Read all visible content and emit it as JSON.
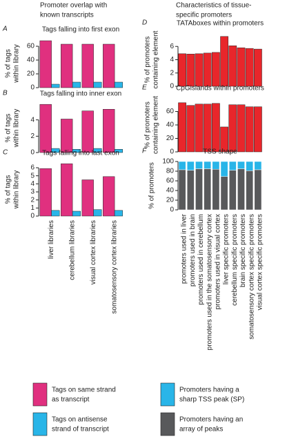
{
  "column_titles": [
    [
      "Promoter overlap with",
      "known transcripts"
    ],
    [
      "Characteristics of tissue-",
      "specific promoters"
    ]
  ],
  "chart_data": [
    {
      "type": "bar",
      "letter": "A",
      "title": "Tags falling into first exon",
      "ylabel": [
        "% of tags",
        "within library"
      ],
      "series": [
        {
          "color": "#e0307f",
          "values": [
            68,
            63,
            63,
            63
          ]
        },
        {
          "color": "#29b5e8",
          "values": [
            5,
            8,
            8,
            8
          ]
        }
      ],
      "ylim": [
        0,
        70
      ],
      "yticks": [
        0,
        20,
        40,
        60
      ]
    },
    {
      "type": "bar",
      "letter": "B",
      "title": "Tags falling into inner exon",
      "ylabel": [
        "% of tags",
        "within library"
      ],
      "series": [
        {
          "color": "#e0307f",
          "values": [
            5.9,
            4.1,
            5.1,
            5.3
          ]
        },
        {
          "color": "#29b5e8",
          "values": [
            0.5,
            0.4,
            0.5,
            0.4
          ]
        }
      ],
      "ylim": [
        0,
        6
      ],
      "yticks": [
        0,
        2,
        4
      ]
    },
    {
      "type": "bar",
      "letter": "C",
      "title": "Tags falling into last exon",
      "ylabel": [
        "% of tags",
        "within library"
      ],
      "categories": [
        "liver libraries",
        "cerebellum libraries",
        "visual cortex libraries",
        "somatosensory cortex libraries"
      ],
      "series": [
        {
          "color": "#e0307f",
          "values": [
            5.9,
            6.5,
            4.5,
            4.9
          ]
        },
        {
          "color": "#29b5e8",
          "values": [
            0.7,
            0.6,
            0.8,
            0.7
          ]
        }
      ],
      "ylim": [
        0,
        6.6
      ],
      "yticks": [
        0,
        1,
        2,
        3,
        4,
        5,
        6
      ]
    },
    {
      "type": "bar",
      "letter": "D",
      "title": "TATAboxes within promoters",
      "ylabel": [
        "% of promoters",
        "containing element"
      ],
      "series": [
        {
          "color": "#e8262b",
          "values": [
            4.9,
            4.85,
            4.9,
            5.0,
            5.1,
            7.5,
            6.1,
            5.8,
            5.7,
            5.6
          ]
        }
      ],
      "ylim": [
        0,
        8
      ],
      "yticks": [
        0,
        2,
        4,
        6
      ]
    },
    {
      "type": "bar",
      "letter": "E",
      "title": "CpGislands within promoters",
      "ylabel": [
        "% of promoters",
        "containing element"
      ],
      "series": [
        {
          "color": "#e8262b",
          "values": [
            73,
            69,
            71,
            71,
            72,
            37,
            70,
            70,
            67,
            67
          ]
        }
      ],
      "ylim": [
        0,
        80
      ],
      "yticks": [
        0,
        20,
        40,
        60
      ]
    },
    {
      "type": "bar",
      "stacked": true,
      "letter": "F",
      "title": "TSS shape",
      "ylabel": [
        "% of promoters"
      ],
      "categories": [
        "promoters used in liver",
        "promoters used in brain",
        "promoters used in cerebellum",
        "promoters used in the somatosensory cortex",
        "promoters used in visual cortex",
        "liver specific promoters",
        "cerebellum specific promoters",
        "brain specific promoters",
        "somatosensory cortex specific promoters",
        "visual cortex specific promoters"
      ],
      "series": [
        {
          "color": "#58595b",
          "values": [
            83,
            82,
            85,
            85,
            84,
            69,
            82,
            85,
            81,
            83
          ]
        },
        {
          "color": "#29b5e8",
          "values": [
            17,
            18,
            15,
            15,
            16,
            31,
            18,
            15,
            19,
            17
          ]
        }
      ],
      "ylim": [
        0,
        100
      ],
      "yticks": [
        0,
        20,
        40,
        60,
        80,
        100
      ]
    }
  ],
  "legend": [
    {
      "color": "#e0307f",
      "lines": [
        "Tags on same strand",
        "as  transcript"
      ]
    },
    {
      "color": "#29b5e8",
      "lines": [
        "Tags on antisense",
        "strand of transcript"
      ]
    },
    {
      "color": "#29b5e8",
      "lines": [
        "Promoters having a",
        "sharp TSS peak (SP)"
      ]
    },
    {
      "color": "#58595b",
      "lines": [
        "Promoters having an",
        "array of peaks"
      ]
    }
  ]
}
